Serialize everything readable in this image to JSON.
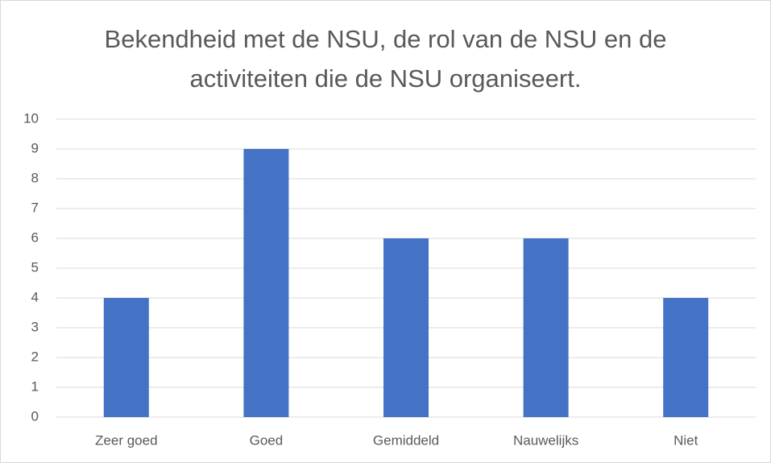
{
  "chart_data": {
    "type": "bar",
    "title": "Bekendheid met de NSU, de rol van de NSU en de activiteiten die de NSU organiseert.",
    "categories": [
      "Zeer goed",
      "Goed",
      "Gemiddeld",
      "Nauwelijks",
      "Niet"
    ],
    "values": [
      4,
      9,
      6,
      6,
      4
    ],
    "color": "#4472c4",
    "ylim": [
      0,
      10
    ],
    "yticks": [
      0,
      1,
      2,
      3,
      4,
      5,
      6,
      7,
      8,
      9,
      10
    ],
    "grid": true
  }
}
